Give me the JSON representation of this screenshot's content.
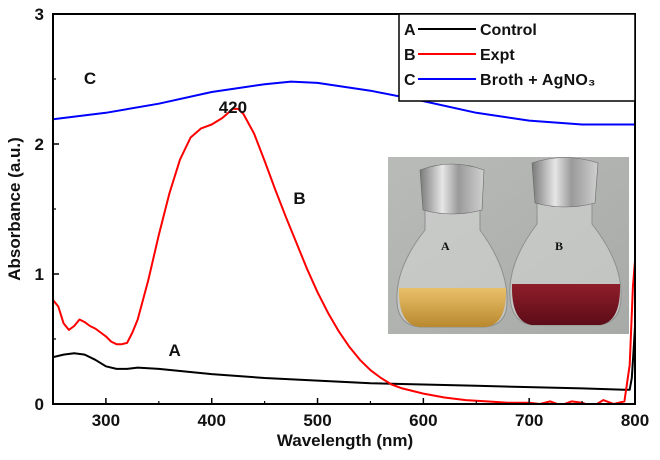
{
  "chart_data": {
    "type": "line",
    "xlabel": "Wavelength (nm)",
    "ylabel": "Absorbance (a.u.)",
    "xlim": [
      250,
      800
    ],
    "ylim": [
      0,
      3
    ],
    "xticks": [
      300,
      400,
      500,
      600,
      700,
      800
    ],
    "yticks": [
      0,
      1,
      2,
      3
    ],
    "grid": false,
    "legend_position": "top-right",
    "series": [
      {
        "key": "A",
        "name": "Control",
        "color": "#000000",
        "x": [
          250,
          260,
          270,
          280,
          290,
          300,
          310,
          320,
          330,
          350,
          400,
          450,
          500,
          550,
          600,
          650,
          700,
          750,
          790,
          795,
          797,
          799,
          800
        ],
        "y": [
          0.36,
          0.38,
          0.39,
          0.38,
          0.34,
          0.29,
          0.27,
          0.27,
          0.28,
          0.27,
          0.23,
          0.2,
          0.18,
          0.16,
          0.15,
          0.14,
          0.13,
          0.12,
          0.11,
          0.11,
          0.2,
          0.45,
          0.6
        ]
      },
      {
        "key": "B",
        "name": "Expt",
        "color": "#ff0000",
        "x": [
          250,
          255,
          260,
          265,
          270,
          275,
          280,
          285,
          290,
          295,
          300,
          305,
          310,
          315,
          320,
          325,
          330,
          340,
          350,
          360,
          370,
          380,
          390,
          400,
          410,
          420,
          425,
          430,
          440,
          450,
          460,
          470,
          480,
          490,
          500,
          510,
          520,
          530,
          540,
          550,
          560,
          570,
          580,
          590,
          600,
          620,
          640,
          660,
          680,
          700,
          710,
          720,
          730,
          740,
          750,
          760,
          770,
          780,
          790,
          795,
          798,
          800
        ],
        "y": [
          0.8,
          0.75,
          0.62,
          0.57,
          0.6,
          0.65,
          0.63,
          0.6,
          0.58,
          0.55,
          0.52,
          0.48,
          0.46,
          0.46,
          0.47,
          0.55,
          0.65,
          0.95,
          1.3,
          1.62,
          1.88,
          2.05,
          2.12,
          2.15,
          2.2,
          2.27,
          2.27,
          2.23,
          2.08,
          1.87,
          1.65,
          1.44,
          1.24,
          1.04,
          0.86,
          0.7,
          0.56,
          0.44,
          0.34,
          0.26,
          0.2,
          0.15,
          0.12,
          0.1,
          0.08,
          0.05,
          0.03,
          0.02,
          0.01,
          0.01,
          0.0,
          0.02,
          -0.01,
          0.02,
          0.01,
          -0.02,
          0.03,
          0.0,
          0.02,
          0.3,
          0.9,
          1.1
        ]
      },
      {
        "key": "C",
        "name": "Broth + AgNO₃",
        "color": "#0000ff",
        "x": [
          250,
          300,
          350,
          400,
          450,
          475,
          500,
          550,
          600,
          650,
          700,
          750,
          780,
          800
        ],
        "y": [
          2.19,
          2.24,
          2.31,
          2.4,
          2.46,
          2.48,
          2.47,
          2.41,
          2.33,
          2.24,
          2.18,
          2.15,
          2.15,
          2.15
        ]
      }
    ],
    "annotations": [
      {
        "text": "C",
        "x": 285,
        "y": 2.46
      },
      {
        "text": "420",
        "x": 420,
        "y": 2.24
      },
      {
        "text": "B",
        "x": 483,
        "y": 1.54
      },
      {
        "text": "A",
        "x": 365,
        "y": 0.37
      }
    ],
    "inset": {
      "description": "photograph",
      "labels": [
        "A",
        "B"
      ]
    }
  }
}
